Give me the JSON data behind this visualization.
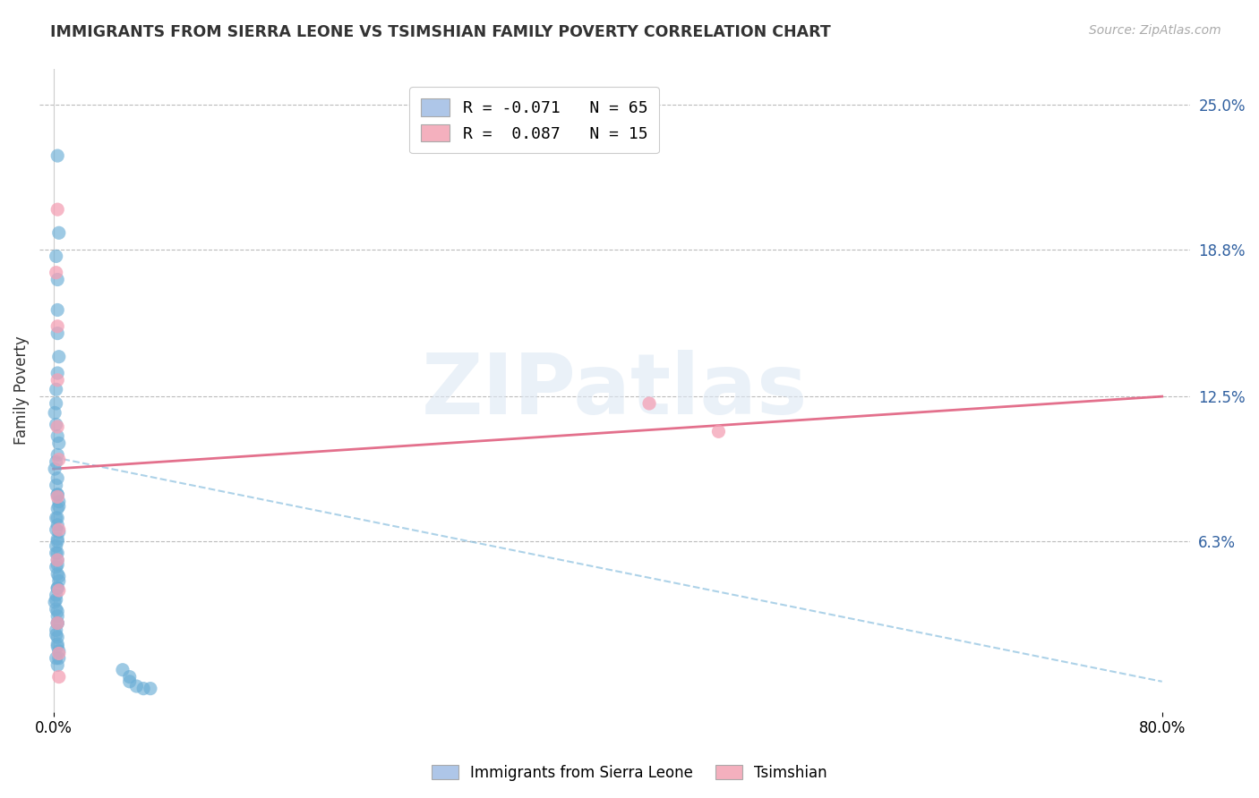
{
  "title": "IMMIGRANTS FROM SIERRA LEONE VS TSIMSHIAN FAMILY POVERTY CORRELATION CHART",
  "source_text": "Source: ZipAtlas.com",
  "ylabel": "Family Poverty",
  "xlim": [
    -0.01,
    0.82
  ],
  "ylim": [
    -0.01,
    0.265
  ],
  "xtick_positions": [
    0.0,
    0.8
  ],
  "xtick_labels": [
    "0.0%",
    "80.0%"
  ],
  "ytick_labels_right": [
    "25.0%",
    "18.8%",
    "12.5%",
    "6.3%"
  ],
  "ytick_values_right": [
    0.25,
    0.188,
    0.125,
    0.063
  ],
  "legend_entries": [
    {
      "label": "R = -0.071   N = 65",
      "color": "#aec6e8"
    },
    {
      "label": "R =  0.087   N = 15",
      "color": "#f4b0be"
    }
  ],
  "watermark_text": "ZIPatlas",
  "blue_color": "#6baed6",
  "pink_color": "#f4a0b5",
  "blue_line_color": "#6baed6",
  "pink_line_color": "#e06080",
  "blue_scatter_x": [
    0.003,
    0.004,
    0.002,
    0.003,
    0.003,
    0.003,
    0.004,
    0.003,
    0.002,
    0.002,
    0.001,
    0.002,
    0.003,
    0.004,
    0.003,
    0.002,
    0.001,
    0.003,
    0.002,
    0.003,
    0.004,
    0.003,
    0.002,
    0.003,
    0.004,
    0.003,
    0.002,
    0.003,
    0.003,
    0.002,
    0.003,
    0.004,
    0.003,
    0.002,
    0.001,
    0.002,
    0.003,
    0.003,
    0.002,
    0.003,
    0.003,
    0.004,
    0.002,
    0.003,
    0.003,
    0.004,
    0.003,
    0.002,
    0.003,
    0.002,
    0.003,
    0.004,
    0.003,
    0.002,
    0.003,
    0.003,
    0.002,
    0.003,
    0.004,
    0.05,
    0.055,
    0.055,
    0.06,
    0.065,
    0.07
  ],
  "blue_scatter_y": [
    0.228,
    0.195,
    0.185,
    0.175,
    0.162,
    0.152,
    0.142,
    0.135,
    0.128,
    0.122,
    0.118,
    0.113,
    0.108,
    0.105,
    0.1,
    0.097,
    0.094,
    0.09,
    0.087,
    0.083,
    0.08,
    0.077,
    0.073,
    0.07,
    0.067,
    0.064,
    0.061,
    0.058,
    0.055,
    0.052,
    0.049,
    0.046,
    0.043,
    0.04,
    0.037,
    0.034,
    0.031,
    0.028,
    0.025,
    0.022,
    0.019,
    0.016,
    0.013,
    0.01,
    0.083,
    0.078,
    0.073,
    0.068,
    0.063,
    0.058,
    0.053,
    0.048,
    0.043,
    0.038,
    0.033,
    0.028,
    0.023,
    0.018,
    0.013,
    0.008,
    0.005,
    0.003,
    0.001,
    0.0,
    0.0
  ],
  "pink_scatter_x": [
    0.003,
    0.002,
    0.003,
    0.003,
    0.003,
    0.004,
    0.003,
    0.004,
    0.003,
    0.004,
    0.003,
    0.004,
    0.004,
    0.43,
    0.48
  ],
  "pink_scatter_y": [
    0.205,
    0.178,
    0.155,
    0.132,
    0.112,
    0.098,
    0.082,
    0.068,
    0.055,
    0.042,
    0.028,
    0.015,
    0.005,
    0.122,
    0.11
  ],
  "blue_line_x": [
    0.0,
    0.8
  ],
  "blue_line_y": [
    0.099,
    0.003
  ],
  "pink_line_x": [
    0.0,
    0.8
  ],
  "pink_line_y": [
    0.094,
    0.125
  ],
  "bottom_legend": [
    {
      "label": "Immigrants from Sierra Leone",
      "color": "#aec6e8"
    },
    {
      "label": "Tsimshian",
      "color": "#f4b0be"
    }
  ]
}
